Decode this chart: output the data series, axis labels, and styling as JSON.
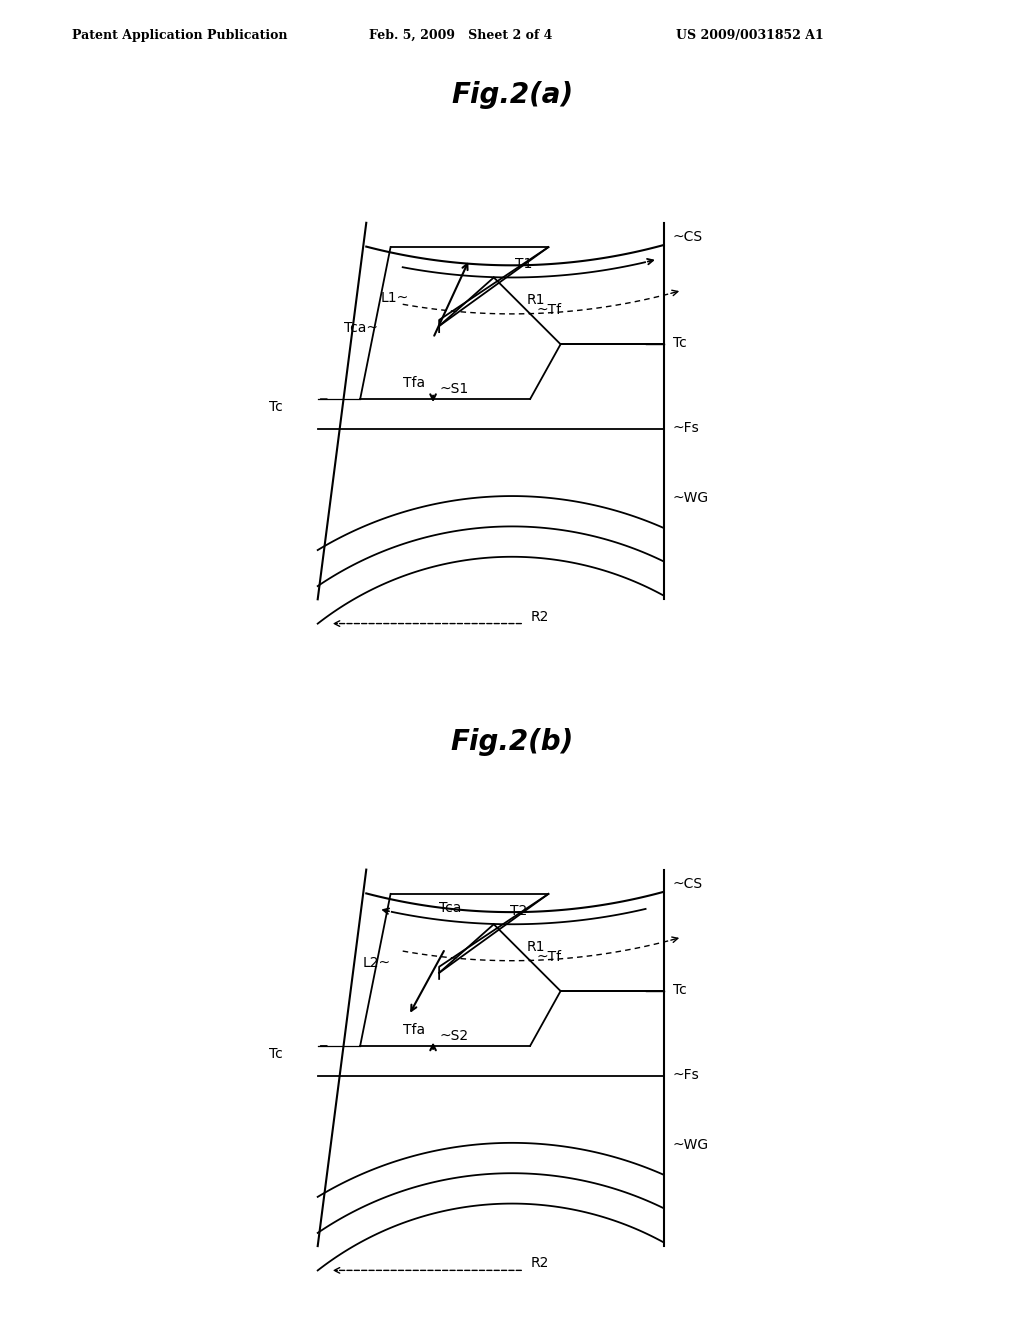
{
  "title_a": "Fig.2(a)",
  "title_b": "Fig.2(b)",
  "header_left": "Patent Application Publication",
  "header_mid": "Feb. 5, 2009   Sheet 2 of 4",
  "header_right": "US 2009/0031852 A1",
  "bg_color": "#ffffff",
  "title_fontsize": 20,
  "label_fontsize": 10,
  "header_fontsize": 9
}
